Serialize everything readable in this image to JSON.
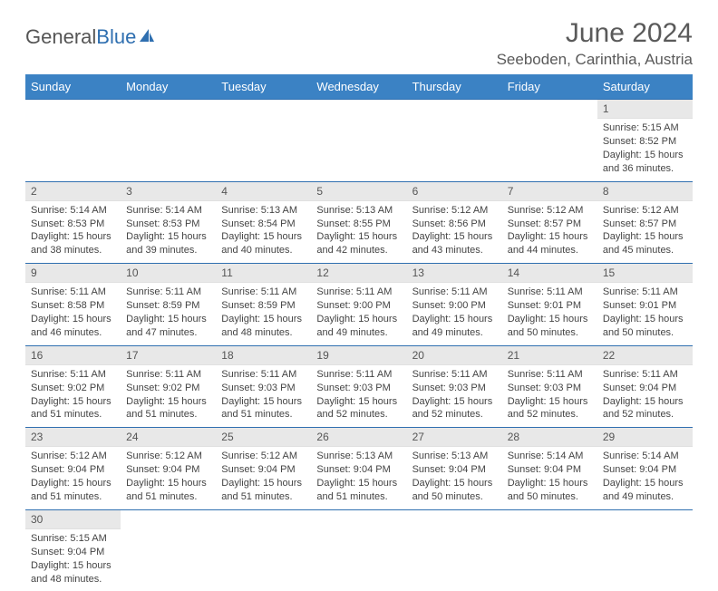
{
  "logo": {
    "text1": "General",
    "text2": "Blue"
  },
  "title": "June 2024",
  "location": "Seeboden, Carinthia, Austria",
  "headers": [
    "Sunday",
    "Monday",
    "Tuesday",
    "Wednesday",
    "Thursday",
    "Friday",
    "Saturday"
  ],
  "colors": {
    "header_bg": "#3b82c4",
    "header_text": "#ffffff",
    "border": "#2f6fb0",
    "daynum_bg": "#e8e8e8",
    "logo_blue": "#2f6fb0"
  },
  "weeks": [
    [
      {
        "n": "",
        "sr": "",
        "ss": "",
        "dl": ""
      },
      {
        "n": "",
        "sr": "",
        "ss": "",
        "dl": ""
      },
      {
        "n": "",
        "sr": "",
        "ss": "",
        "dl": ""
      },
      {
        "n": "",
        "sr": "",
        "ss": "",
        "dl": ""
      },
      {
        "n": "",
        "sr": "",
        "ss": "",
        "dl": ""
      },
      {
        "n": "",
        "sr": "",
        "ss": "",
        "dl": ""
      },
      {
        "n": "1",
        "sr": "Sunrise: 5:15 AM",
        "ss": "Sunset: 8:52 PM",
        "dl": "Daylight: 15 hours and 36 minutes."
      }
    ],
    [
      {
        "n": "2",
        "sr": "Sunrise: 5:14 AM",
        "ss": "Sunset: 8:53 PM",
        "dl": "Daylight: 15 hours and 38 minutes."
      },
      {
        "n": "3",
        "sr": "Sunrise: 5:14 AM",
        "ss": "Sunset: 8:53 PM",
        "dl": "Daylight: 15 hours and 39 minutes."
      },
      {
        "n": "4",
        "sr": "Sunrise: 5:13 AM",
        "ss": "Sunset: 8:54 PM",
        "dl": "Daylight: 15 hours and 40 minutes."
      },
      {
        "n": "5",
        "sr": "Sunrise: 5:13 AM",
        "ss": "Sunset: 8:55 PM",
        "dl": "Daylight: 15 hours and 42 minutes."
      },
      {
        "n": "6",
        "sr": "Sunrise: 5:12 AM",
        "ss": "Sunset: 8:56 PM",
        "dl": "Daylight: 15 hours and 43 minutes."
      },
      {
        "n": "7",
        "sr": "Sunrise: 5:12 AM",
        "ss": "Sunset: 8:57 PM",
        "dl": "Daylight: 15 hours and 44 minutes."
      },
      {
        "n": "8",
        "sr": "Sunrise: 5:12 AM",
        "ss": "Sunset: 8:57 PM",
        "dl": "Daylight: 15 hours and 45 minutes."
      }
    ],
    [
      {
        "n": "9",
        "sr": "Sunrise: 5:11 AM",
        "ss": "Sunset: 8:58 PM",
        "dl": "Daylight: 15 hours and 46 minutes."
      },
      {
        "n": "10",
        "sr": "Sunrise: 5:11 AM",
        "ss": "Sunset: 8:59 PM",
        "dl": "Daylight: 15 hours and 47 minutes."
      },
      {
        "n": "11",
        "sr": "Sunrise: 5:11 AM",
        "ss": "Sunset: 8:59 PM",
        "dl": "Daylight: 15 hours and 48 minutes."
      },
      {
        "n": "12",
        "sr": "Sunrise: 5:11 AM",
        "ss": "Sunset: 9:00 PM",
        "dl": "Daylight: 15 hours and 49 minutes."
      },
      {
        "n": "13",
        "sr": "Sunrise: 5:11 AM",
        "ss": "Sunset: 9:00 PM",
        "dl": "Daylight: 15 hours and 49 minutes."
      },
      {
        "n": "14",
        "sr": "Sunrise: 5:11 AM",
        "ss": "Sunset: 9:01 PM",
        "dl": "Daylight: 15 hours and 50 minutes."
      },
      {
        "n": "15",
        "sr": "Sunrise: 5:11 AM",
        "ss": "Sunset: 9:01 PM",
        "dl": "Daylight: 15 hours and 50 minutes."
      }
    ],
    [
      {
        "n": "16",
        "sr": "Sunrise: 5:11 AM",
        "ss": "Sunset: 9:02 PM",
        "dl": "Daylight: 15 hours and 51 minutes."
      },
      {
        "n": "17",
        "sr": "Sunrise: 5:11 AM",
        "ss": "Sunset: 9:02 PM",
        "dl": "Daylight: 15 hours and 51 minutes."
      },
      {
        "n": "18",
        "sr": "Sunrise: 5:11 AM",
        "ss": "Sunset: 9:03 PM",
        "dl": "Daylight: 15 hours and 51 minutes."
      },
      {
        "n": "19",
        "sr": "Sunrise: 5:11 AM",
        "ss": "Sunset: 9:03 PM",
        "dl": "Daylight: 15 hours and 52 minutes."
      },
      {
        "n": "20",
        "sr": "Sunrise: 5:11 AM",
        "ss": "Sunset: 9:03 PM",
        "dl": "Daylight: 15 hours and 52 minutes."
      },
      {
        "n": "21",
        "sr": "Sunrise: 5:11 AM",
        "ss": "Sunset: 9:03 PM",
        "dl": "Daylight: 15 hours and 52 minutes."
      },
      {
        "n": "22",
        "sr": "Sunrise: 5:11 AM",
        "ss": "Sunset: 9:04 PM",
        "dl": "Daylight: 15 hours and 52 minutes."
      }
    ],
    [
      {
        "n": "23",
        "sr": "Sunrise: 5:12 AM",
        "ss": "Sunset: 9:04 PM",
        "dl": "Daylight: 15 hours and 51 minutes."
      },
      {
        "n": "24",
        "sr": "Sunrise: 5:12 AM",
        "ss": "Sunset: 9:04 PM",
        "dl": "Daylight: 15 hours and 51 minutes."
      },
      {
        "n": "25",
        "sr": "Sunrise: 5:12 AM",
        "ss": "Sunset: 9:04 PM",
        "dl": "Daylight: 15 hours and 51 minutes."
      },
      {
        "n": "26",
        "sr": "Sunrise: 5:13 AM",
        "ss": "Sunset: 9:04 PM",
        "dl": "Daylight: 15 hours and 51 minutes."
      },
      {
        "n": "27",
        "sr": "Sunrise: 5:13 AM",
        "ss": "Sunset: 9:04 PM",
        "dl": "Daylight: 15 hours and 50 minutes."
      },
      {
        "n": "28",
        "sr": "Sunrise: 5:14 AM",
        "ss": "Sunset: 9:04 PM",
        "dl": "Daylight: 15 hours and 50 minutes."
      },
      {
        "n": "29",
        "sr": "Sunrise: 5:14 AM",
        "ss": "Sunset: 9:04 PM",
        "dl": "Daylight: 15 hours and 49 minutes."
      }
    ],
    [
      {
        "n": "30",
        "sr": "Sunrise: 5:15 AM",
        "ss": "Sunset: 9:04 PM",
        "dl": "Daylight: 15 hours and 48 minutes."
      },
      {
        "n": "",
        "sr": "",
        "ss": "",
        "dl": ""
      },
      {
        "n": "",
        "sr": "",
        "ss": "",
        "dl": ""
      },
      {
        "n": "",
        "sr": "",
        "ss": "",
        "dl": ""
      },
      {
        "n": "",
        "sr": "",
        "ss": "",
        "dl": ""
      },
      {
        "n": "",
        "sr": "",
        "ss": "",
        "dl": ""
      },
      {
        "n": "",
        "sr": "",
        "ss": "",
        "dl": ""
      }
    ]
  ]
}
